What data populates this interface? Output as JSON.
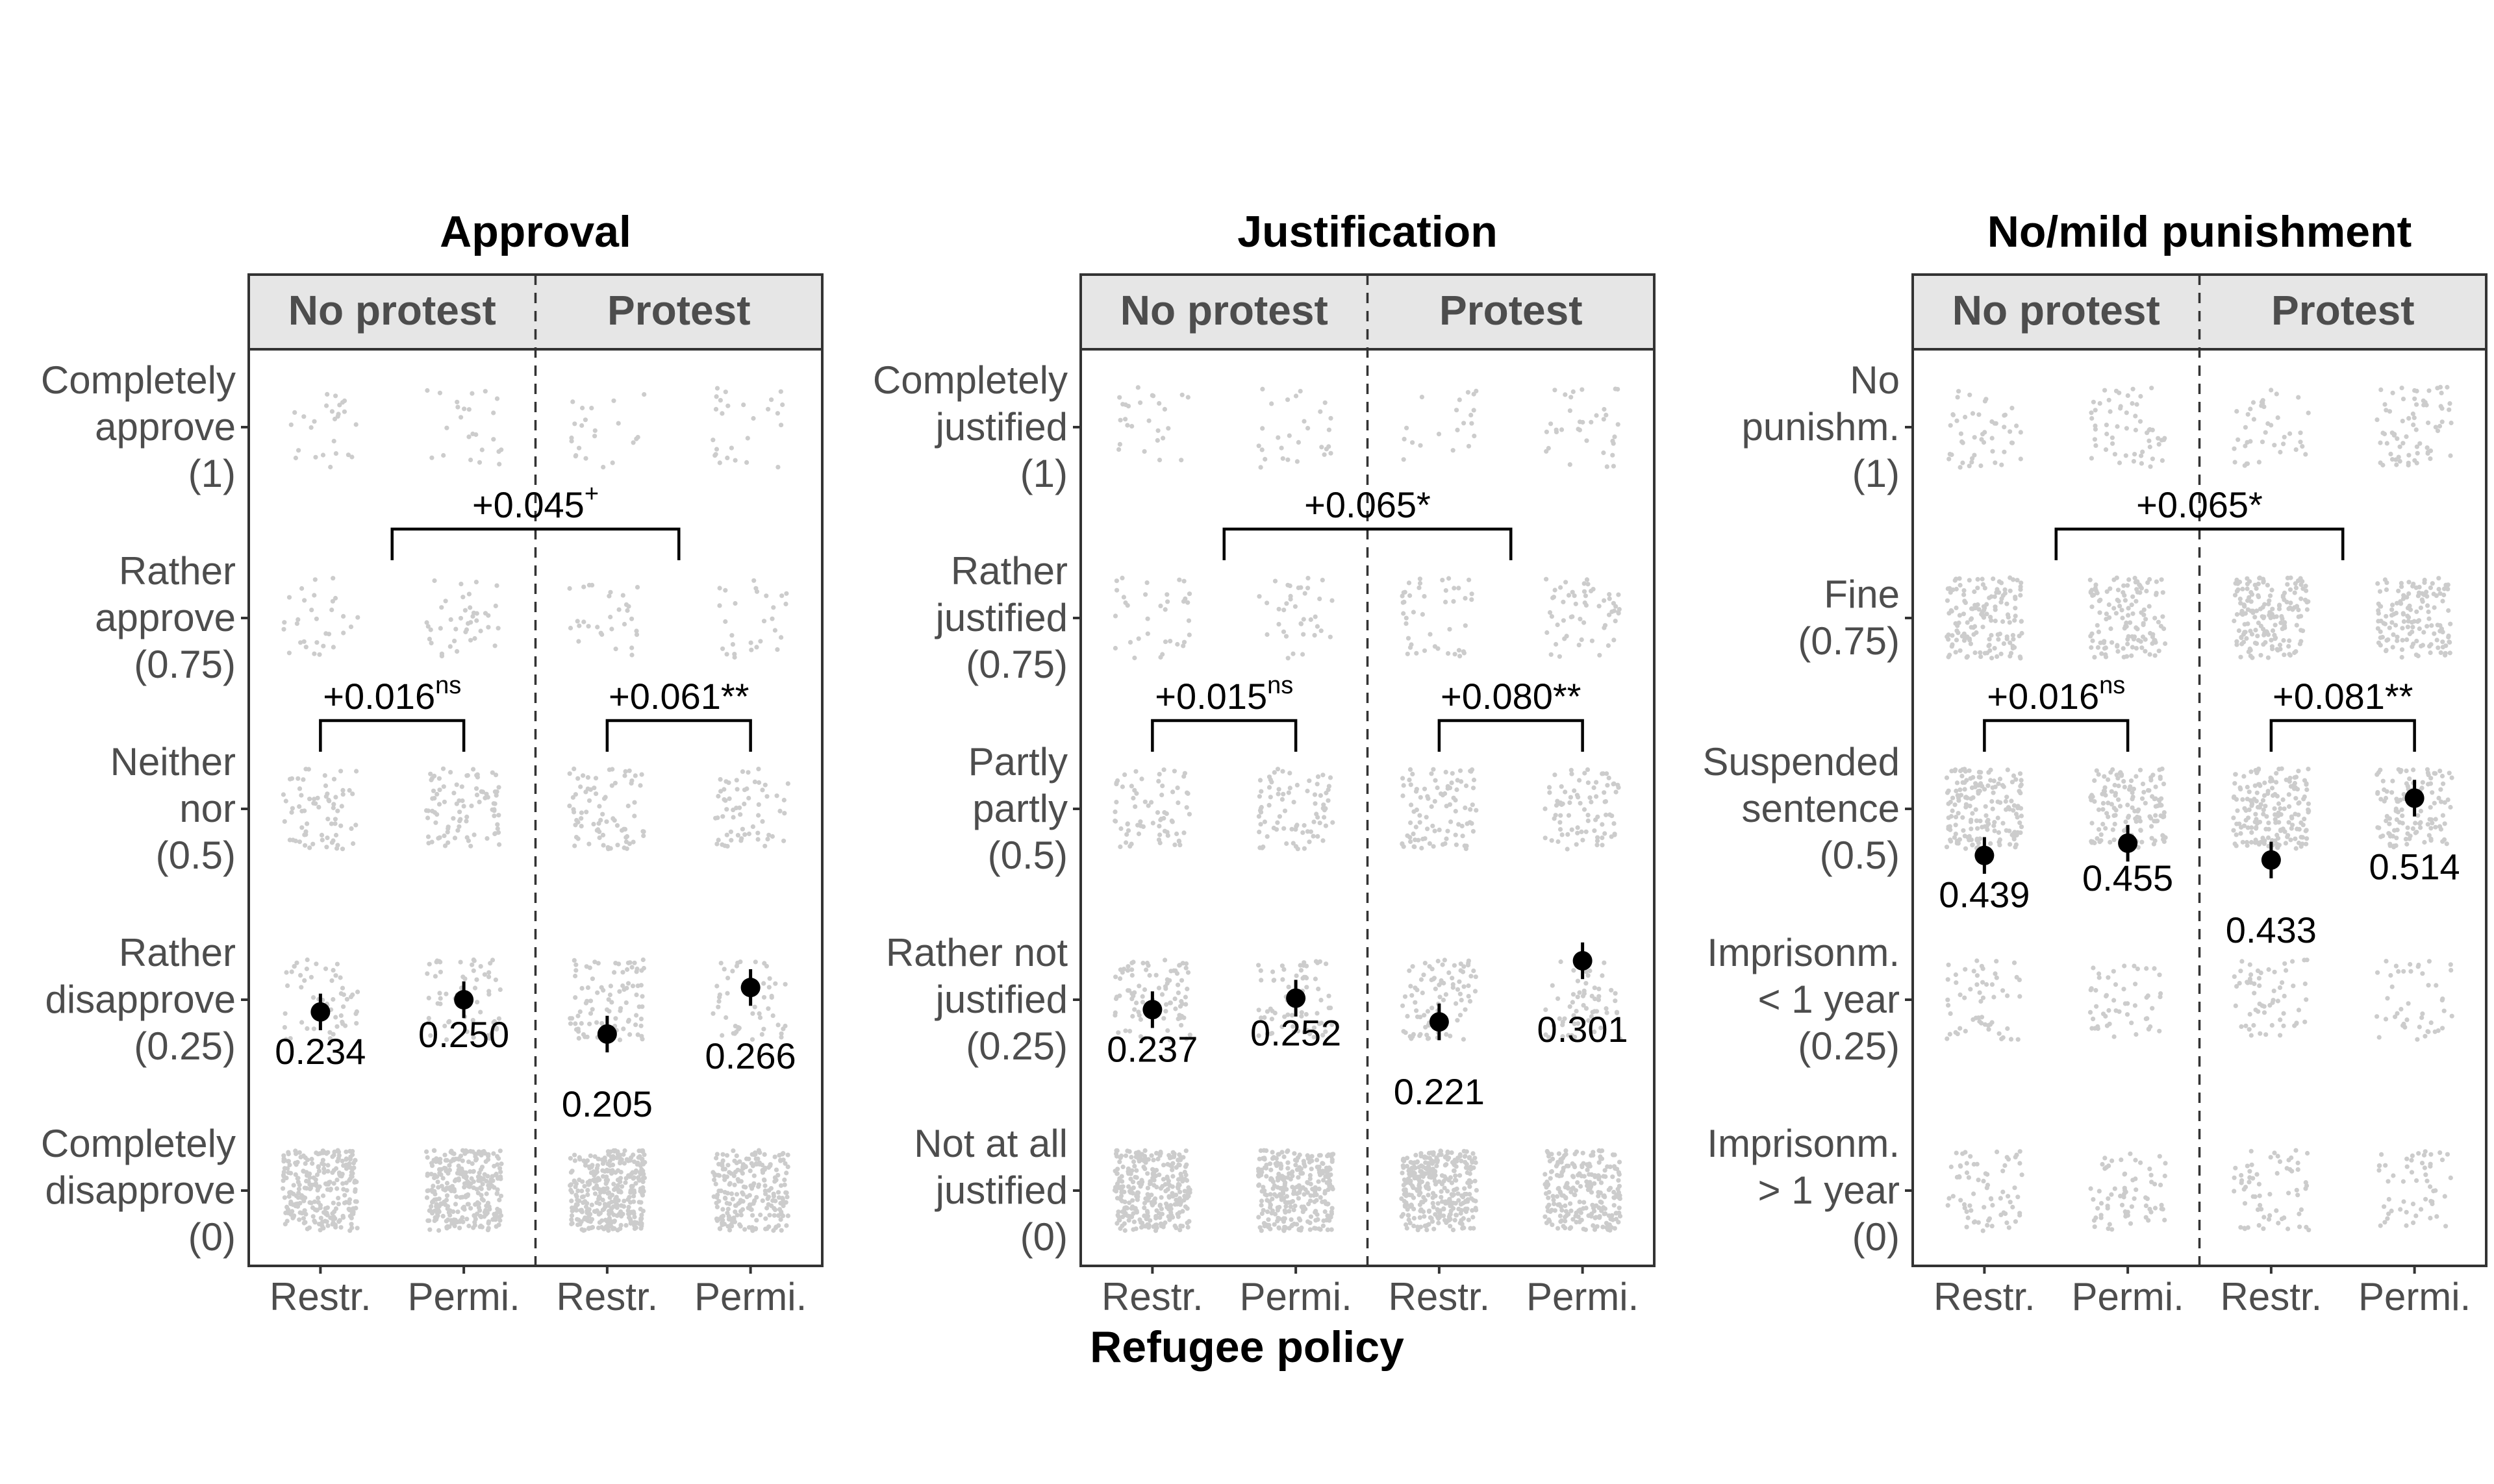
{
  "chart_data": {
    "type": "scatter",
    "xlabel": "Refugee policy",
    "x_categories": [
      "Restr.",
      "Permi.",
      "Restr.",
      "Permi."
    ],
    "groups": [
      "No protest",
      "Protest"
    ],
    "colors": {
      "points": "#000000",
      "jitter": "#cccccc",
      "strip_bg": "#e6e6e6",
      "border": "#333333"
    },
    "ylim": [
      0,
      1
    ],
    "panels": [
      {
        "title": "Approval",
        "yticks": [
          {
            "value": 1,
            "lines": [
              "Completely",
              "approve",
              "(1)"
            ]
          },
          {
            "value": 0.75,
            "lines": [
              "Rather",
              "approve",
              "(0.75)"
            ]
          },
          {
            "value": 0.5,
            "lines": [
              "Neither",
              "nor",
              "(0.5)"
            ]
          },
          {
            "value": 0.25,
            "lines": [
              "Rather",
              "disapprove",
              "(0.25)"
            ]
          },
          {
            "value": 0,
            "lines": [
              "Completely",
              "disapprove",
              "(0)"
            ]
          }
        ],
        "jitter_counts": [
          [
            26,
            30,
            70,
            55,
            260
          ],
          [
            24,
            42,
            88,
            60,
            300
          ],
          [
            22,
            30,
            78,
            90,
            340
          ],
          [
            26,
            28,
            62,
            52,
            230
          ]
        ],
        "means": [
          {
            "label": "0.234",
            "y": 0.234,
            "ci": [
              0.21,
              0.258
            ]
          },
          {
            "label": "0.250",
            "y": 0.25,
            "ci": [
              0.226,
              0.274
            ]
          },
          {
            "label": "0.205",
            "y": 0.205,
            "ci": [
              0.181,
              0.229
            ]
          },
          {
            "label": "0.266",
            "y": 0.266,
            "ci": [
              0.242,
              0.29
            ]
          }
        ],
        "annotations": [
          {
            "from": 0,
            "to": 1,
            "text": "+0.016",
            "sup": "ns",
            "level": "low"
          },
          {
            "from": 2,
            "to": 3,
            "text": "+0.061**",
            "sup": "",
            "level": "low"
          },
          {
            "from": 0.5,
            "to": 2.5,
            "text": "+0.045",
            "sup": "+",
            "level": "high"
          }
        ]
      },
      {
        "title": "Justification",
        "yticks": [
          {
            "value": 1,
            "lines": [
              "Completely",
              "justified",
              "(1)"
            ]
          },
          {
            "value": 0.75,
            "lines": [
              "Rather",
              "justified",
              "(0.75)"
            ]
          },
          {
            "value": 0.5,
            "lines": [
              "Partly",
              "partly",
              "(0.5)"
            ]
          },
          {
            "value": 0.25,
            "lines": [
              "Rather not",
              "justified",
              "(0.25)"
            ]
          },
          {
            "value": 0,
            "lines": [
              "Not at all",
              "justified",
              "(0)"
            ]
          }
        ],
        "jitter_counts": [
          [
            26,
            34,
            70,
            90,
            300
          ],
          [
            28,
            36,
            80,
            70,
            290
          ],
          [
            20,
            44,
            92,
            88,
            320
          ],
          [
            34,
            56,
            82,
            60,
            240
          ]
        ],
        "means": [
          {
            "label": "0.237",
            "y": 0.237,
            "ci": [
              0.213,
              0.261
            ]
          },
          {
            "label": "0.252",
            "y": 0.252,
            "ci": [
              0.228,
              0.276
            ]
          },
          {
            "label": "0.221",
            "y": 0.221,
            "ci": [
              0.197,
              0.245
            ]
          },
          {
            "label": "0.301",
            "y": 0.301,
            "ci": [
              0.277,
              0.325
            ]
          }
        ],
        "annotations": [
          {
            "from": 0,
            "to": 1,
            "text": "+0.015",
            "sup": "ns",
            "level": "low"
          },
          {
            "from": 2,
            "to": 3,
            "text": "+0.080**",
            "sup": "",
            "level": "low"
          },
          {
            "from": 0.5,
            "to": 2.5,
            "text": "+0.065*",
            "sup": "",
            "level": "high"
          }
        ]
      },
      {
        "title": "No/mild punishment",
        "yticks": [
          {
            "value": 1,
            "lines": [
              "No",
              "punishm.",
              "(1)"
            ]
          },
          {
            "value": 0.75,
            "lines": [
              "Fine",
              "(0.75)"
            ]
          },
          {
            "value": 0.5,
            "lines": [
              "Suspended",
              "sentence",
              "(0.5)"
            ]
          },
          {
            "value": 0.25,
            "lines": [
              "Imprisonm.",
              "< 1 year",
              "(0.25)"
            ]
          },
          {
            "value": 0,
            "lines": [
              "Imprisonm.",
              "> 1 year",
              "(0)"
            ]
          }
        ],
        "jitter_counts": [
          [
            48,
            150,
            170,
            56,
            70
          ],
          [
            56,
            130,
            140,
            52,
            68
          ],
          [
            40,
            170,
            180,
            60,
            64
          ],
          [
            70,
            140,
            120,
            44,
            54
          ]
        ],
        "means": [
          {
            "label": "0.439",
            "y": 0.439,
            "ci": [
              0.415,
              0.463
            ]
          },
          {
            "label": "0.455",
            "y": 0.455,
            "ci": [
              0.431,
              0.479
            ]
          },
          {
            "label": "0.433",
            "y": 0.433,
            "ci": [
              0.409,
              0.457
            ]
          },
          {
            "label": "0.514",
            "y": 0.514,
            "ci": [
              0.49,
              0.538
            ]
          }
        ],
        "annotations": [
          {
            "from": 0,
            "to": 1,
            "text": "+0.016",
            "sup": "ns",
            "level": "low"
          },
          {
            "from": 2,
            "to": 3,
            "text": "+0.081**",
            "sup": "",
            "level": "low"
          },
          {
            "from": 0.5,
            "to": 2.5,
            "text": "+0.065*",
            "sup": "",
            "level": "high"
          }
        ]
      }
    ]
  }
}
